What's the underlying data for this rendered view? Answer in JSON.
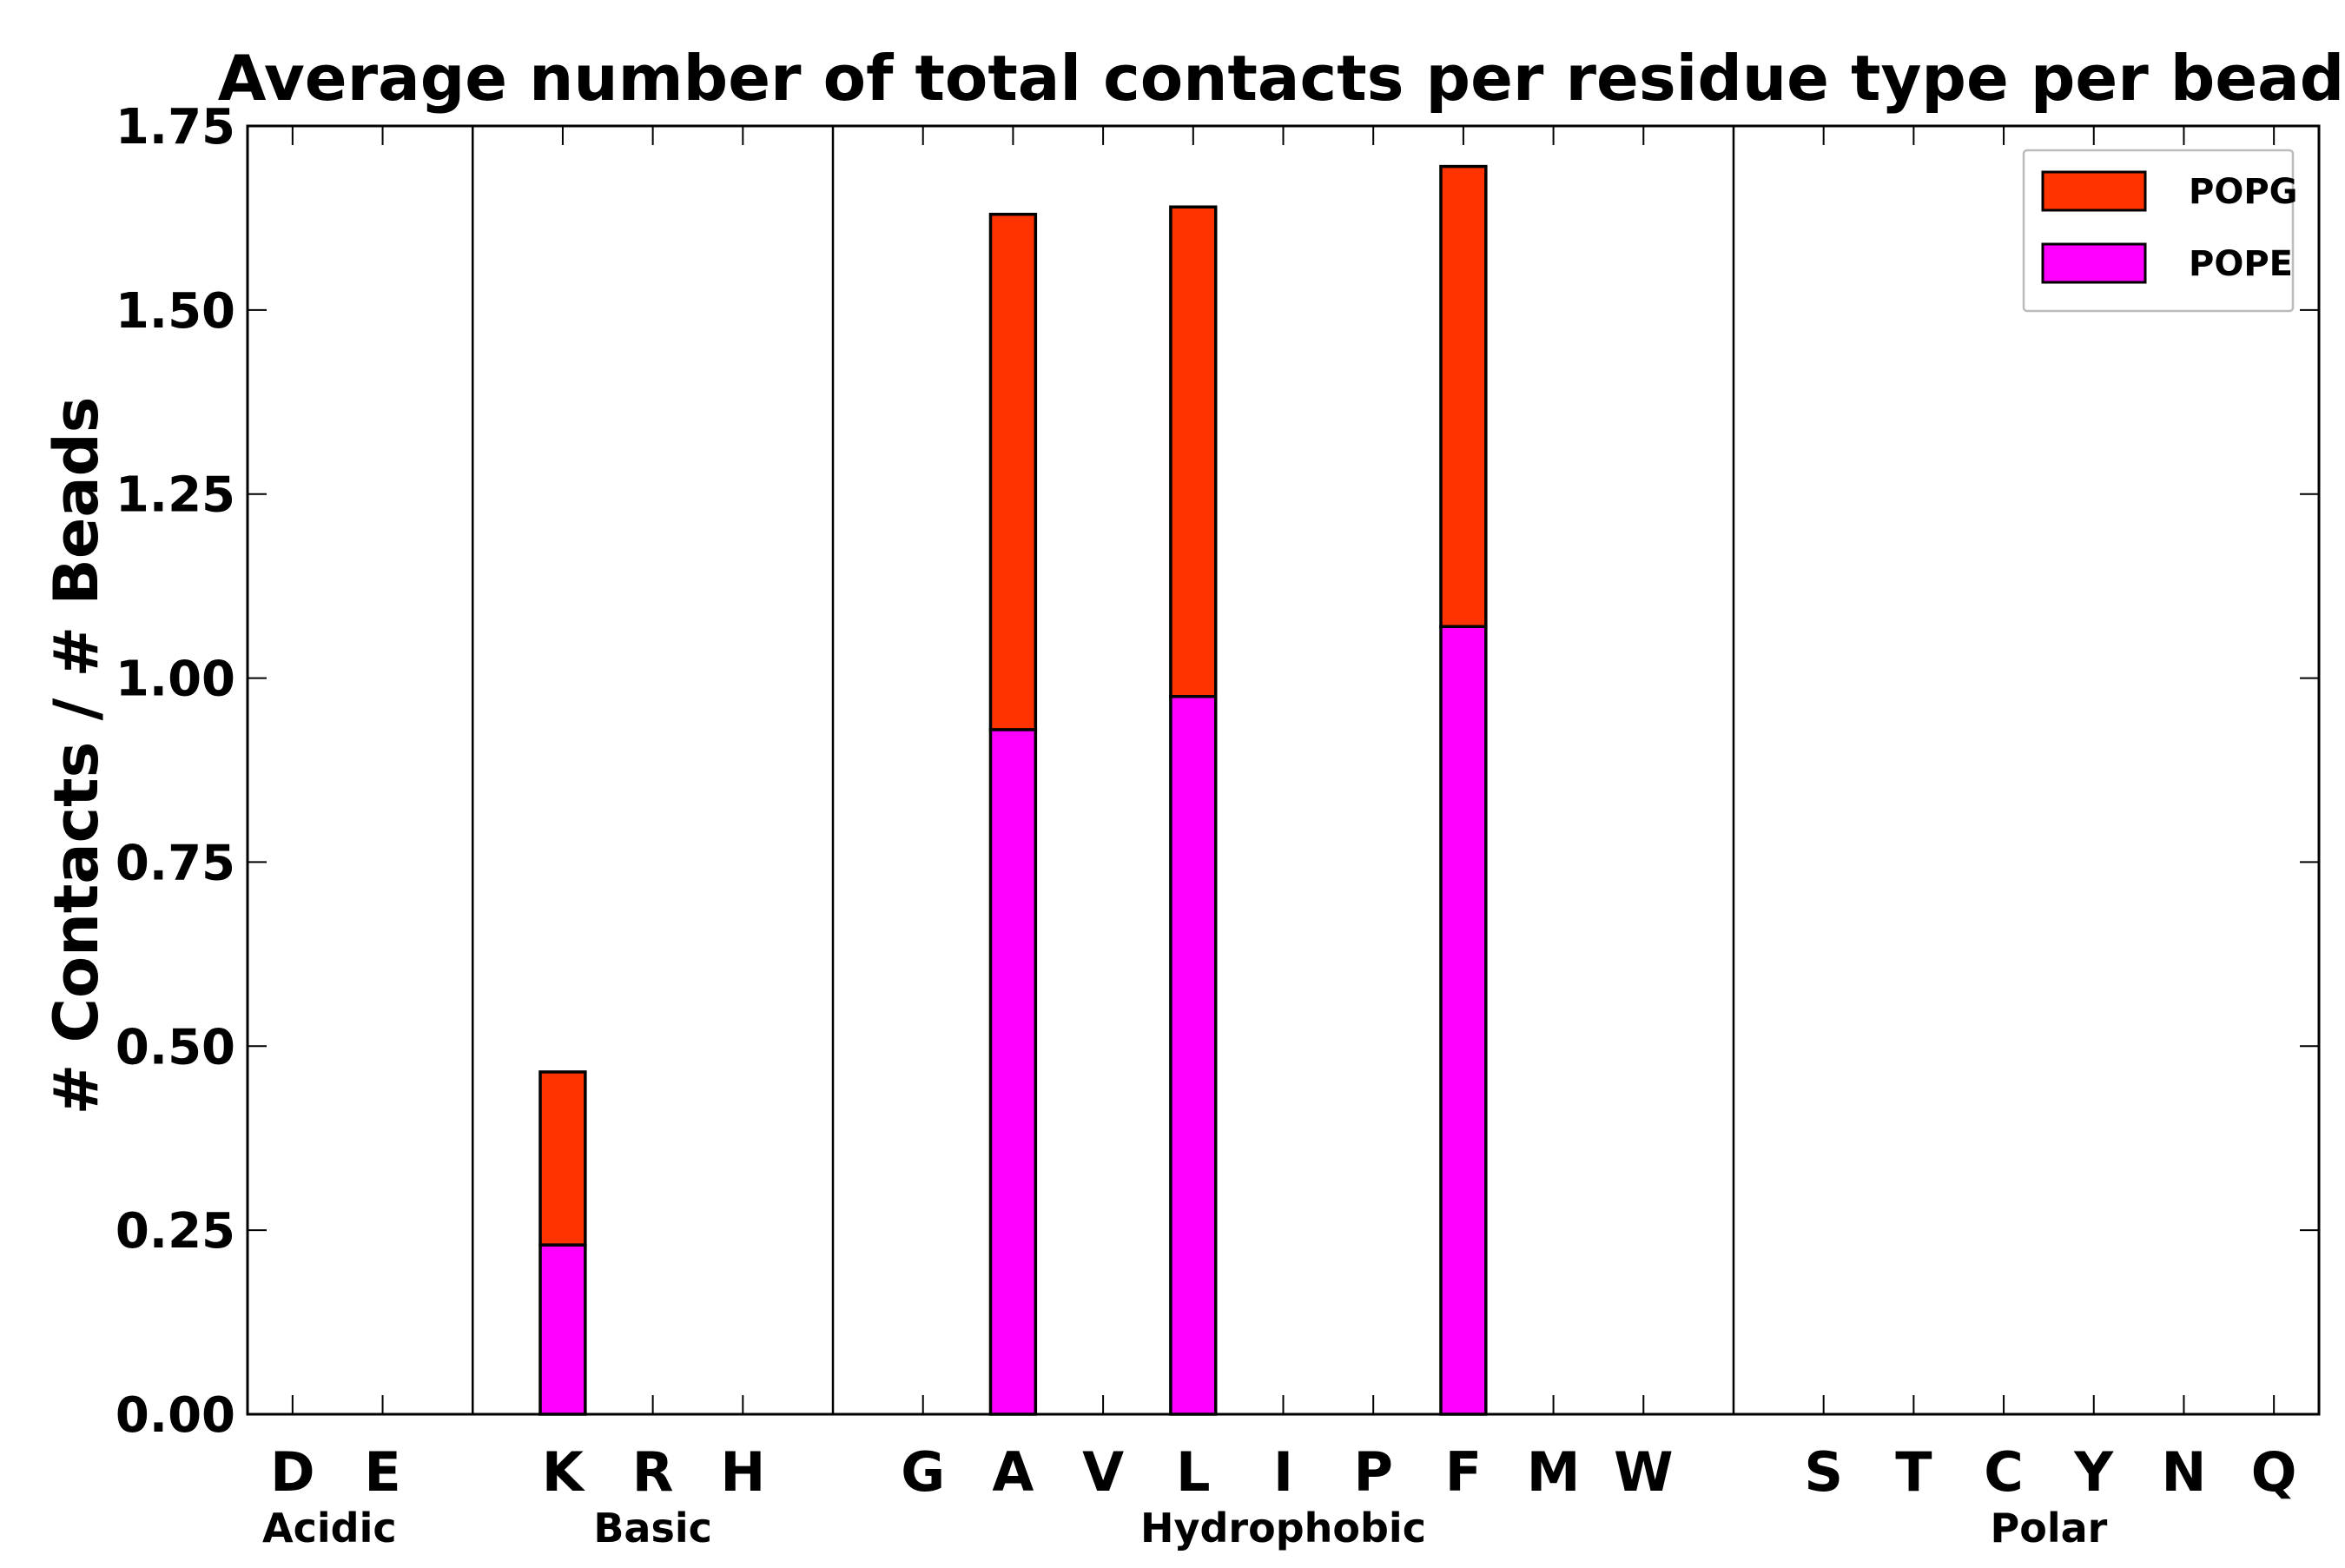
{
  "chart_data": {
    "type": "bar",
    "stacked": true,
    "title": "Average number of total contacts per residue type per bead",
    "xlabel": "",
    "ylabel": "# Contacts / # Beads",
    "ylim": [
      0,
      1.75
    ],
    "yticks": [
      "0.00",
      "0.25",
      "0.50",
      "0.75",
      "1.00",
      "1.25",
      "1.50",
      "1.75"
    ],
    "slot_count": 23,
    "categories": [
      {
        "label": "D",
        "slot": 0
      },
      {
        "label": "E",
        "slot": 1
      },
      {
        "label": "K",
        "slot": 3
      },
      {
        "label": "R",
        "slot": 4
      },
      {
        "label": "H",
        "slot": 5
      },
      {
        "label": "G",
        "slot": 7
      },
      {
        "label": "A",
        "slot": 8
      },
      {
        "label": "V",
        "slot": 9
      },
      {
        "label": "L",
        "slot": 10
      },
      {
        "label": "I",
        "slot": 11
      },
      {
        "label": "P",
        "slot": 12
      },
      {
        "label": "F",
        "slot": 13
      },
      {
        "label": "M",
        "slot": 14
      },
      {
        "label": "W",
        "slot": 15
      },
      {
        "label": "S",
        "slot": 17
      },
      {
        "label": "T",
        "slot": 18
      },
      {
        "label": "C",
        "slot": 19
      },
      {
        "label": "Y",
        "slot": 20
      },
      {
        "label": "N",
        "slot": 21
      },
      {
        "label": "Q",
        "slot": 22
      }
    ],
    "group_dividers": [
      2,
      6,
      16
    ],
    "groups": [
      {
        "label": "Acidic",
        "slots": [
          0,
          1
        ]
      },
      {
        "label": "Basic",
        "slots": [
          3,
          5
        ]
      },
      {
        "label": "Hydrophobic",
        "slots": [
          7,
          15
        ]
      },
      {
        "label": "Polar",
        "slots": [
          17,
          22
        ]
      }
    ],
    "series": [
      {
        "name": "POPE",
        "color": "#ff00ff",
        "values": [
          0,
          0,
          0.23,
          0,
          0,
          0,
          0.93,
          0,
          0.975,
          0,
          0,
          1.07,
          0,
          0,
          0,
          0,
          0,
          0,
          0,
          0
        ]
      },
      {
        "name": "POPG",
        "color": "#ff3300",
        "values": [
          0,
          0,
          0.235,
          0,
          0,
          0,
          0.7,
          0,
          0.665,
          0,
          0,
          0.625,
          0,
          0,
          0,
          0,
          0,
          0,
          0,
          0
        ]
      }
    ],
    "legend": {
      "position": "top-right",
      "order": [
        "POPG",
        "POPE"
      ]
    }
  }
}
